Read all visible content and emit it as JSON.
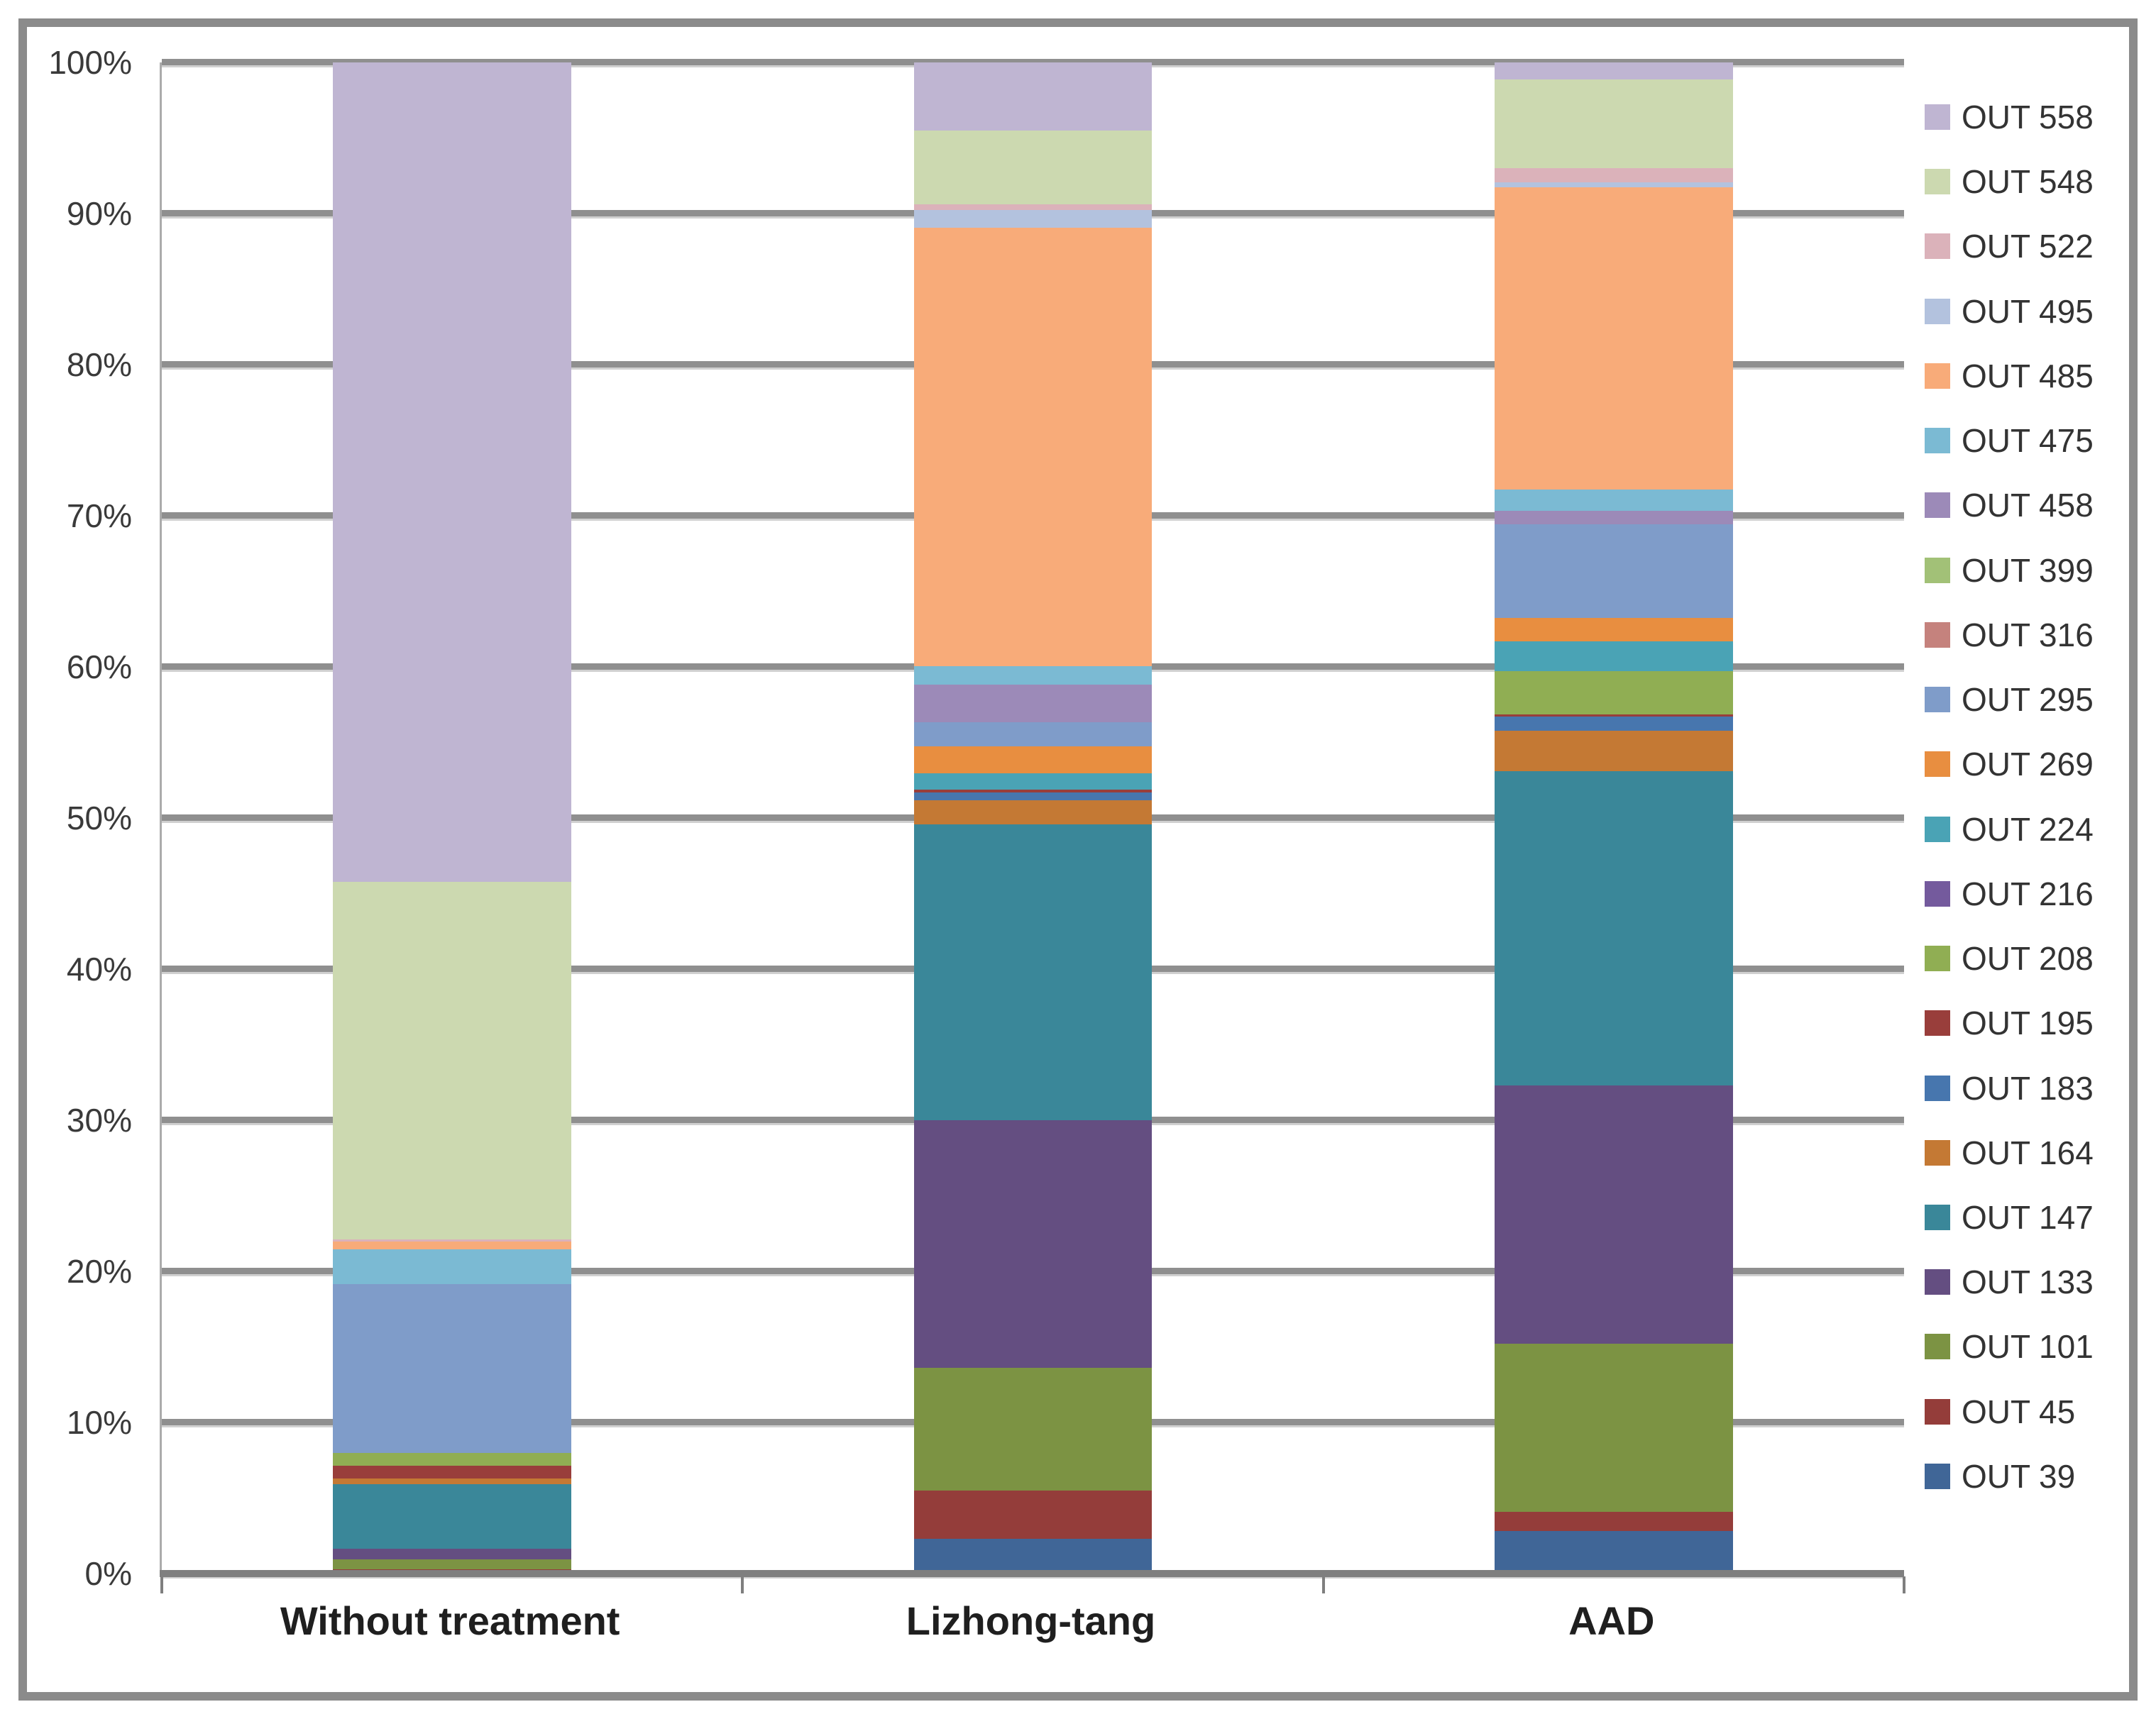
{
  "chart_data": {
    "type": "bar",
    "subtype": "stacked-100-percent-column",
    "title": "",
    "xlabel": "",
    "ylabel": "",
    "categories": [
      "Without treatment",
      "Lizhong-tang",
      "AAD"
    ],
    "y_axis": {
      "min": 0,
      "max": 100,
      "tick_step": 10,
      "ticks": [
        "0%",
        "10%",
        "20%",
        "30%",
        "40%",
        "50%",
        "60%",
        "70%",
        "80%",
        "90%",
        "100%"
      ],
      "grid": true
    },
    "legend_position": "right",
    "legend_order_top_to_bottom": [
      "OUT 558",
      "OUT 548",
      "OUT 522",
      "OUT 495",
      "OUT 485",
      "OUT 475",
      "OUT 458",
      "OUT 399",
      "OUT 316",
      "OUT 295",
      "OUT 269",
      "OUT 224",
      "OUT 216",
      "OUT 208",
      "OUT 195",
      "OUT 183",
      "OUT 164",
      "OUT 147",
      "OUT 133",
      "OUT 101",
      "OUT 45",
      "OUT 39"
    ],
    "series": [
      {
        "name": "OUT 39",
        "color": "#406697",
        "values": [
          0.1,
          2.3,
          2.8
        ]
      },
      {
        "name": "OUT 45",
        "color": "#943d3a",
        "values": [
          0.2,
          3.2,
          1.3
        ]
      },
      {
        "name": "OUT 101",
        "color": "#7c9343",
        "values": [
          0.65,
          8.1,
          11.1
        ]
      },
      {
        "name": "OUT 133",
        "color": "#644e81",
        "values": [
          0.7,
          16.4,
          17.1
        ]
      },
      {
        "name": "OUT 147",
        "color": "#3a8799",
        "values": [
          4.3,
          19.6,
          20.8
        ]
      },
      {
        "name": "OUT 164",
        "color": "#c47934",
        "values": [
          0.35,
          1.6,
          2.7
        ]
      },
      {
        "name": "OUT 183",
        "color": "#4776ae",
        "values": [
          0,
          0.5,
          0.9
        ]
      },
      {
        "name": "OUT 195",
        "color": "#993e3b",
        "values": [
          0.85,
          0.2,
          0.15
        ]
      },
      {
        "name": "OUT 208",
        "color": "#90ae53",
        "values": [
          0.85,
          0,
          2.85
        ]
      },
      {
        "name": "OUT 216",
        "color": "#745a9d",
        "values": [
          0,
          0,
          0
        ]
      },
      {
        "name": "OUT 224",
        "color": "#4aa3b5",
        "values": [
          0,
          1.1,
          2.0
        ]
      },
      {
        "name": "OUT 269",
        "color": "#e88e40",
        "values": [
          0,
          1.75,
          1.55
        ]
      },
      {
        "name": "OUT 295",
        "color": "#7f9cc9",
        "values": [
          11.2,
          1.6,
          6.2
        ]
      },
      {
        "name": "OUT 316",
        "color": "#c5827d",
        "values": [
          0,
          0,
          0
        ]
      },
      {
        "name": "OUT 399",
        "color": "#a2c177",
        "values": [
          0,
          0,
          0
        ]
      },
      {
        "name": "OUT 458",
        "color": "#9c8ab8",
        "values": [
          0,
          2.5,
          0.9
        ]
      },
      {
        "name": "OUT 475",
        "color": "#7bbad3",
        "values": [
          2.3,
          1.25,
          1.4
        ]
      },
      {
        "name": "OUT 485",
        "color": "#f8ab79",
        "values": [
          0.5,
          29.0,
          20.0
        ]
      },
      {
        "name": "OUT 495",
        "color": "#b3c2de",
        "values": [
          0,
          1.2,
          0.3
        ]
      },
      {
        "name": "OUT 522",
        "color": "#dbb2ba",
        "values": [
          0.15,
          0.35,
          0.95
        ]
      },
      {
        "name": "OUT 548",
        "color": "#ccd9b0",
        "values": [
          23.7,
          4.9,
          5.9
        ]
      },
      {
        "name": "OUT 558",
        "color": "#bfb5d2",
        "values": [
          54.3,
          4.5,
          1.1
        ]
      }
    ]
  }
}
